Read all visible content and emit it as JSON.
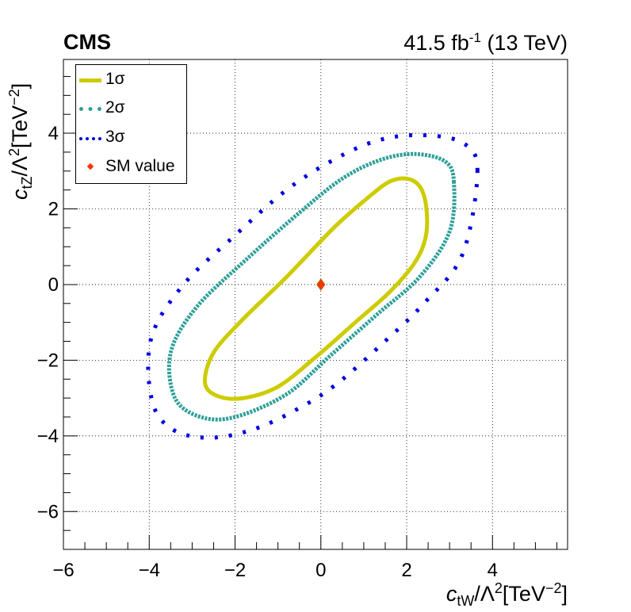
{
  "header": {
    "experiment": "CMS",
    "lumi_value": "41.5 fb",
    "lumi_exp": "-1",
    "energy": "(13 TeV)"
  },
  "axis_titles": {
    "x_main": "c",
    "x_sub": "tW",
    "x_rest": "/Λ",
    "x_sq": "2",
    "x_units": "[TeV",
    "x_unit_exp": "−2",
    "x_close": "]",
    "y_main": "c",
    "y_sub": "tZ",
    "y_rest": "/Λ",
    "y_sq": "2",
    "y_units": "[TeV",
    "y_unit_exp": "−2",
    "y_close": "]"
  },
  "legend": {
    "one_sigma": "1σ",
    "two_sigma": "2σ",
    "three_sigma": "3σ",
    "sm_value": "SM value"
  },
  "colors": {
    "one_sigma": "#cccc00",
    "two_sigma": "#2f9f9a",
    "three_sigma": "#0000e0",
    "sm_point": "#ff3300",
    "sm_border": "#b06000"
  },
  "chart_data": {
    "type": "contour",
    "xlim": [
      -6,
      5.75
    ],
    "ylim": [
      -7,
      5.95
    ],
    "x_ticks": [
      -6,
      -4,
      -2,
      0,
      2,
      4
    ],
    "y_ticks": [
      -6,
      -4,
      -2,
      0,
      2,
      4
    ],
    "x_tick_labels": [
      "−6",
      "−4",
      "−2",
      "0",
      "2",
      "4"
    ],
    "y_tick_labels": [
      "−6",
      "−4",
      "−2",
      "0",
      "2",
      "4"
    ],
    "grid": true,
    "legend_position": "top-left",
    "sm_point": {
      "x": 0,
      "y": 0
    },
    "contours": [
      {
        "name": "1σ",
        "style": "solid",
        "points": [
          [
            2.45,
            2.1
          ],
          [
            2.3,
            2.6
          ],
          [
            2.0,
            2.8
          ],
          [
            1.6,
            2.72
          ],
          [
            1.1,
            2.3
          ],
          [
            0.3,
            1.5
          ],
          [
            -0.8,
            0.2
          ],
          [
            -1.8,
            -0.9
          ],
          [
            -2.5,
            -1.8
          ],
          [
            -2.7,
            -2.6
          ],
          [
            -2.4,
            -2.95
          ],
          [
            -1.8,
            -3.0
          ],
          [
            -1.0,
            -2.7
          ],
          [
            -0.1,
            -1.9
          ],
          [
            0.8,
            -1.0
          ],
          [
            1.6,
            -0.2
          ],
          [
            2.2,
            0.6
          ],
          [
            2.45,
            1.3
          ],
          [
            2.45,
            2.1
          ]
        ]
      },
      {
        "name": "2σ",
        "style": "dotted",
        "points": [
          [
            3.1,
            2.7
          ],
          [
            2.9,
            3.25
          ],
          [
            2.2,
            3.45
          ],
          [
            1.4,
            3.3
          ],
          [
            0.5,
            2.8
          ],
          [
            -0.5,
            1.9
          ],
          [
            -1.7,
            0.7
          ],
          [
            -2.9,
            -0.6
          ],
          [
            -3.5,
            -1.8
          ],
          [
            -3.4,
            -3.0
          ],
          [
            -2.8,
            -3.5
          ],
          [
            -2.0,
            -3.5
          ],
          [
            -0.8,
            -2.9
          ],
          [
            0.2,
            -1.9
          ],
          [
            1.3,
            -0.8
          ],
          [
            2.3,
            0.2
          ],
          [
            3.0,
            1.4
          ],
          [
            3.1,
            2.7
          ]
        ]
      },
      {
        "name": "3σ",
        "style": "dotted",
        "points": [
          [
            3.65,
            3.0
          ],
          [
            3.3,
            3.75
          ],
          [
            2.3,
            3.95
          ],
          [
            1.3,
            3.8
          ],
          [
            0.3,
            3.3
          ],
          [
            -0.8,
            2.5
          ],
          [
            -2.0,
            1.3
          ],
          [
            -3.2,
            0.0
          ],
          [
            -3.95,
            -1.4
          ],
          [
            -3.95,
            -3.0
          ],
          [
            -3.5,
            -3.8
          ],
          [
            -2.6,
            -4.05
          ],
          [
            -1.5,
            -3.8
          ],
          [
            -0.4,
            -3.2
          ],
          [
            0.4,
            -2.6
          ],
          [
            1.4,
            -1.6
          ],
          [
            2.4,
            -0.5
          ],
          [
            3.3,
            0.8
          ],
          [
            3.65,
            3.0
          ]
        ]
      }
    ]
  }
}
